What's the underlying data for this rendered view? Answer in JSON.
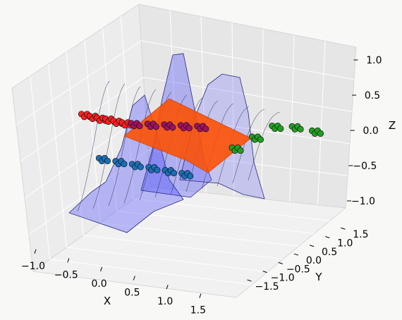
{
  "chart_data": {
    "type": "scatter",
    "subtype": "3d-scatter-with-surfaces",
    "title": "",
    "axes": {
      "x": {
        "label": "X",
        "ticks": [
          "−1.0",
          "−0.5",
          "0.0",
          "0.5",
          "1.0",
          "1.5"
        ],
        "range": [
          -1.2,
          1.9
        ]
      },
      "y": {
        "label": "Y",
        "ticks": [
          "−1.5",
          "−1.0",
          "−0.5",
          "0.0",
          "0.5",
          "1.0",
          "1.5"
        ],
        "range": [
          -1.7,
          1.7
        ]
      },
      "z": {
        "label": "Z",
        "ticks": [
          "−1.0",
          "−0.5",
          "0.0",
          "0.5",
          "1.0"
        ],
        "range": [
          -1.1,
          1.2
        ]
      }
    },
    "grid": true,
    "legend": "none",
    "series": [
      {
        "color": "#ff2020",
        "points": [
          [
            -1.0,
            -0.35,
            0.15
          ],
          [
            -0.9,
            -0.3,
            0.12
          ],
          [
            -0.8,
            -0.28,
            0.1
          ],
          [
            -0.7,
            -0.22,
            0.08
          ],
          [
            -0.6,
            -0.18,
            0.05
          ],
          [
            -0.5,
            -0.12,
            0.02
          ]
        ]
      },
      {
        "color": "#a01060",
        "points": [
          [
            -0.4,
            -0.05,
            0.0
          ],
          [
            -0.2,
            0.05,
            -0.02
          ],
          [
            0.0,
            0.15,
            -0.04
          ],
          [
            0.2,
            0.25,
            -0.06
          ],
          [
            0.4,
            0.35,
            -0.08
          ]
        ]
      },
      {
        "color": "#1a6fb8",
        "points": [
          [
            -0.6,
            -0.6,
            -0.3
          ],
          [
            -0.4,
            -0.5,
            -0.35
          ],
          [
            -0.2,
            -0.4,
            -0.4
          ],
          [
            0.0,
            -0.3,
            -0.45
          ],
          [
            0.2,
            -0.2,
            -0.5
          ],
          [
            0.4,
            -0.1,
            -0.55
          ]
        ]
      },
      {
        "color": "#20a020",
        "points": [
          [
            0.8,
            0.6,
            -0.4
          ],
          [
            1.0,
            0.8,
            -0.3
          ],
          [
            1.2,
            1.0,
            -0.2
          ],
          [
            1.4,
            1.2,
            -0.25
          ],
          [
            1.6,
            1.4,
            -0.35
          ]
        ]
      }
    ],
    "surfaces": [
      {
        "kind": "ridge",
        "color": "#3030ff",
        "opacity": 0.35
      },
      {
        "kind": "plane",
        "color": "#ff5a00",
        "opacity": 0.85
      }
    ]
  }
}
